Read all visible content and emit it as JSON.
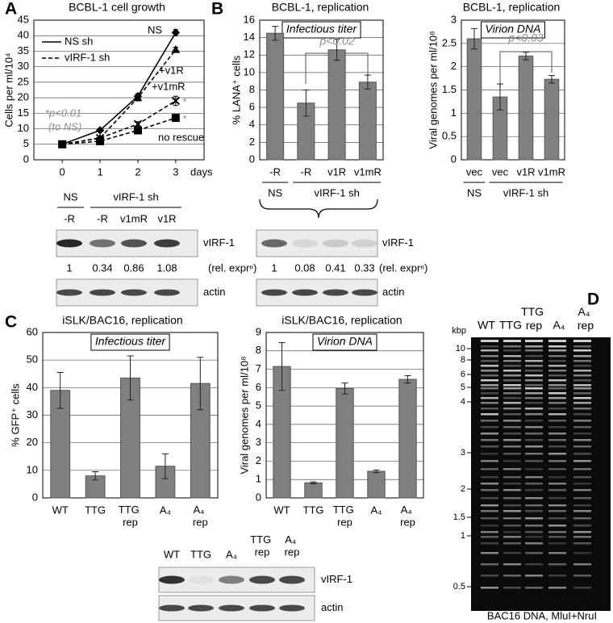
{
  "panels": [
    "A",
    "B",
    "C",
    "D"
  ],
  "chart_data": [
    {
      "type": "line",
      "title": "BCBL-1 cell growth",
      "ylabel": "Cells per ml/10⁴",
      "xlabel": "days",
      "x": [
        0,
        1,
        2,
        3
      ],
      "xlim": [
        -0.75,
        3.75
      ],
      "xticks": [
        0,
        1,
        2,
        3
      ],
      "ylim": [
        0,
        45
      ],
      "yticks": [
        0,
        5,
        10,
        15,
        20,
        25,
        30,
        35,
        40,
        45
      ],
      "grid": true,
      "series": [
        {
          "name": "NS",
          "color": "#000000",
          "dash": "solid",
          "marker": "diamond",
          "values": [
            5,
            9.5,
            20.5,
            41
          ],
          "errors": [
            0.3,
            0.5,
            0.8,
            1.0
          ]
        },
        {
          "name": "+v1R",
          "color": "#000000",
          "dash": "dashed",
          "marker": "triangle",
          "values": [
            5,
            7,
            20,
            35.5
          ],
          "errors": [
            0.3,
            0.4,
            1.0,
            0.8
          ]
        },
        {
          "name": "+v1mR",
          "color": "#000000",
          "dash": "dashed",
          "marker": "x",
          "values": [
            5,
            7,
            11.5,
            19
          ],
          "errors": [
            0.3,
            0.4,
            0.8,
            1.5
          ]
        },
        {
          "name": "no rescue",
          "color": "#000000",
          "dash": "dashed",
          "marker": "square",
          "values": [
            5,
            6,
            9.5,
            13.5
          ],
          "errors": [
            0.3,
            0.3,
            0.6,
            0.5
          ]
        }
      ],
      "legend": [
        {
          "name": "NS sh",
          "dash": "solid"
        },
        {
          "name": "vIRF-1 sh",
          "dash": "dashed"
        }
      ],
      "annotations": [
        "*p<0.01",
        "(to NS)",
        "*",
        "*"
      ],
      "annotation_color": "#8c8c8c"
    },
    {
      "type": "bar",
      "title": "BCBL-1, replication",
      "inner_label": "Infectious titer",
      "ylabel": "% LANA⁺ cells",
      "categories": [
        "-R",
        "-R",
        "v1R",
        "v1mR"
      ],
      "values": [
        14.5,
        6.5,
        12.6,
        8.9
      ],
      "errors": [
        0.8,
        1.5,
        1.2,
        0.8
      ],
      "color": "#808080",
      "ylim": [
        0,
        16
      ],
      "yticks": [
        0,
        2,
        4,
        6,
        8,
        10,
        12,
        14,
        16
      ],
      "grid": true,
      "groups": [
        "NS",
        "vIRF-1 sh"
      ],
      "annotations": [
        "p<0.02"
      ],
      "annotation_color": "#8c8c8c"
    },
    {
      "type": "bar",
      "title": "BCBL-1, replication",
      "inner_label": "Virion DNA",
      "ylabel": "Viral genomes per ml/10⁸",
      "categories": [
        "vec",
        "vec",
        "v1R",
        "v1mR"
      ],
      "values": [
        2.6,
        1.35,
        2.23,
        1.73
      ],
      "errors": [
        0.22,
        0.28,
        0.08,
        0.08
      ],
      "color": "#808080",
      "ylim": [
        0,
        3
      ],
      "yticks": [
        0,
        0.5,
        1,
        1.5,
        2,
        2.5,
        3
      ],
      "grid": true,
      "groups": [
        "NS",
        "vIRF-1 sh"
      ],
      "annotations": [
        "p<0.03"
      ],
      "annotation_color": "#8c8c8c"
    },
    {
      "type": "bar",
      "title": "iSLK/BAC16, replication",
      "inner_label": "Infectious titer",
      "ylabel": "% GFP⁺ cells",
      "categories": [
        "WT",
        "TTG",
        "TTG rep",
        "A₄",
        "A₄ rep"
      ],
      "values": [
        39,
        8,
        43.5,
        11.5,
        41.5
      ],
      "errors": [
        6.5,
        1.5,
        8,
        4.5,
        9.5
      ],
      "color": "#808080",
      "ylim": [
        0,
        60
      ],
      "yticks": [
        0,
        10,
        20,
        30,
        40,
        50,
        60
      ],
      "grid": true
    },
    {
      "type": "bar",
      "title": "iSLK/BAC16, replication",
      "inner_label": "Virion DNA",
      "ylabel": "Viral genomes per ml/10⁸",
      "categories": [
        "WT",
        "TTG",
        "TTG rep",
        "A₄",
        "A₄ rep"
      ],
      "values": [
        7.15,
        0.82,
        5.95,
        1.45,
        6.45
      ],
      "errors": [
        1.3,
        0.05,
        0.3,
        0.07,
        0.2
      ],
      "color": "#808080",
      "ylim": [
        0,
        9
      ],
      "yticks": [
        0,
        1,
        2,
        3,
        4,
        5,
        6,
        7,
        8,
        9
      ],
      "grid": true
    }
  ],
  "blots": [
    {
      "groups": [
        "NS",
        "vIRF-1 sh"
      ],
      "lanes": [
        "-R",
        "-R",
        "v1mR",
        "v1R"
      ],
      "rows": [
        "vIRF-1",
        "actin"
      ],
      "quant": [
        1,
        0.34,
        0.86,
        1.08
      ],
      "quant_label": "(rel. exprⁿ)"
    },
    {
      "rows": [
        "vIRF-1",
        "actin"
      ],
      "quant": [
        1,
        0.08,
        0.41,
        0.33
      ],
      "quant_label": "(rel. exprⁿ)"
    },
    {
      "lanes": [
        "WT",
        "TTG",
        "A₄",
        "TTG rep",
        "A₄ rep"
      ],
      "rows": [
        "vIRF-1",
        "actin"
      ]
    }
  ],
  "gel": {
    "lanes": [
      "WT",
      "TTG",
      "TTG rep",
      "A₄",
      "A₄ rep"
    ],
    "unit": "kbp",
    "markers": [
      10,
      8,
      6,
      5,
      4,
      3,
      2,
      1.5,
      1,
      0.5
    ],
    "caption": "BAC16 DNA, MluI+NruI"
  }
}
